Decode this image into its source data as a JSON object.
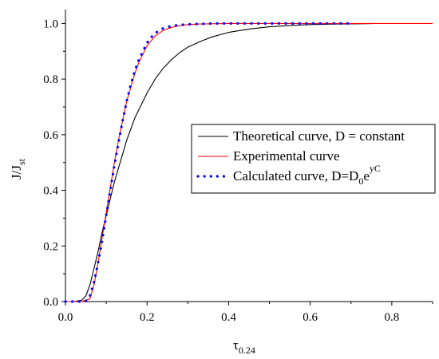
{
  "chart_data": {
    "type": "line",
    "xlabel": {
      "base": "τ",
      "sub": "0.24"
    },
    "ylabel": {
      "base": "J/J",
      "sub": "st"
    },
    "xlim": [
      0.0,
      0.9
    ],
    "ylim": [
      0.0,
      1.05
    ],
    "xticks": [
      "0.0",
      "0.2",
      "0.4",
      "0.6",
      "0.8"
    ],
    "yticks": [
      "0.0",
      "0.2",
      "0.4",
      "0.6",
      "0.8",
      "1.0"
    ],
    "grid": false,
    "legend_position": "center-right",
    "legend": [
      {
        "parts": [
          {
            "t": "Theoretical curve, D = constant"
          }
        ]
      },
      {
        "parts": [
          {
            "t": "Experimental curve"
          }
        ]
      },
      {
        "parts": [
          {
            "t": "Calculated curve, D=D"
          },
          {
            "t": "0",
            "style": "sub"
          },
          {
            "t": "e"
          },
          {
            "t": "yC",
            "style": "sup"
          }
        ]
      }
    ],
    "series": [
      {
        "style": "solid",
        "color": "#000000",
        "x": [
          0.0,
          0.02,
          0.04,
          0.05,
          0.06,
          0.07,
          0.08,
          0.09,
          0.1,
          0.11,
          0.12,
          0.13,
          0.14,
          0.15,
          0.16,
          0.17,
          0.18,
          0.2,
          0.22,
          0.24,
          0.26,
          0.28,
          0.3,
          0.33,
          0.36,
          0.4,
          0.45,
          0.5,
          0.55,
          0.6,
          0.66,
          0.72,
          0.76
        ],
        "y": [
          0.0,
          0.0,
          0.005,
          0.02,
          0.06,
          0.12,
          0.18,
          0.25,
          0.31,
          0.37,
          0.43,
          0.48,
          0.53,
          0.58,
          0.62,
          0.66,
          0.69,
          0.75,
          0.8,
          0.84,
          0.87,
          0.895,
          0.915,
          0.935,
          0.952,
          0.968,
          0.98,
          0.988,
          0.993,
          0.996,
          0.998,
          0.999,
          1.0
        ]
      },
      {
        "style": "solid",
        "color": "#ff0000",
        "x": [
          0.0,
          0.04,
          0.06,
          0.07,
          0.08,
          0.09,
          0.1,
          0.11,
          0.12,
          0.13,
          0.14,
          0.15,
          0.16,
          0.17,
          0.18,
          0.19,
          0.2,
          0.22,
          0.24,
          0.26,
          0.28,
          0.3,
          0.33,
          0.36,
          0.4,
          0.5,
          0.6,
          0.7,
          0.8,
          0.9
        ],
        "y": [
          0.0,
          0.0,
          0.01,
          0.06,
          0.14,
          0.23,
          0.32,
          0.41,
          0.5,
          0.58,
          0.65,
          0.72,
          0.77,
          0.82,
          0.86,
          0.89,
          0.92,
          0.955,
          0.975,
          0.986,
          0.992,
          0.996,
          0.998,
          0.999,
          1.0,
          1.0,
          1.0,
          1.0,
          1.0,
          1.0
        ]
      },
      {
        "style": "dotted",
        "color": "#0000ff",
        "x": [
          0.0,
          0.02,
          0.04,
          0.05,
          0.06,
          0.07,
          0.08,
          0.09,
          0.1,
          0.11,
          0.12,
          0.13,
          0.14,
          0.15,
          0.16,
          0.17,
          0.18,
          0.19,
          0.2,
          0.21,
          0.22,
          0.23,
          0.24,
          0.26,
          0.28,
          0.3,
          0.32,
          0.34,
          0.36,
          0.38,
          0.4,
          0.43,
          0.46,
          0.5,
          0.54,
          0.58,
          0.62,
          0.66,
          0.7
        ],
        "y": [
          0.0,
          0.0,
          0.0,
          0.002,
          0.02,
          0.07,
          0.14,
          0.22,
          0.31,
          0.4,
          0.49,
          0.57,
          0.65,
          0.72,
          0.78,
          0.83,
          0.87,
          0.9,
          0.93,
          0.95,
          0.965,
          0.975,
          0.983,
          0.991,
          0.995,
          0.997,
          0.998,
          0.999,
          1.0,
          1.0,
          1.0,
          1.0,
          1.0,
          1.0,
          1.0,
          1.0,
          1.0,
          1.0,
          1.0
        ]
      }
    ]
  }
}
